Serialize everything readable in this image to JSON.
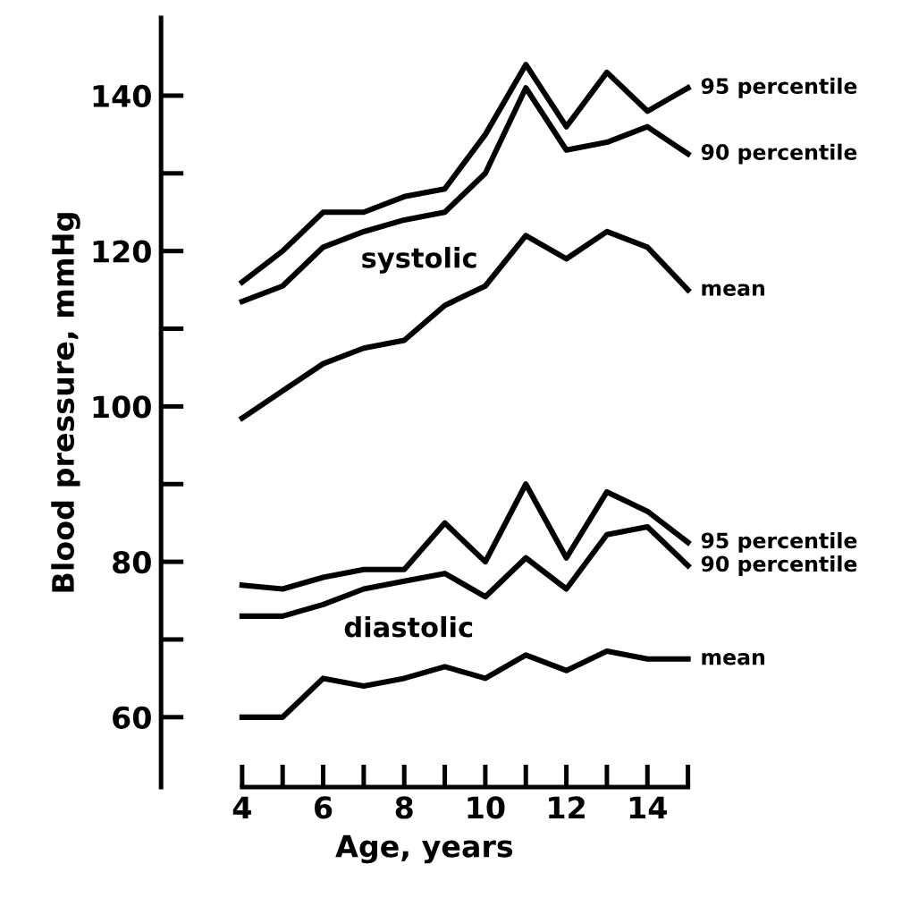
{
  "chart_data": {
    "type": "line",
    "xlabel": "Age, years",
    "ylabel": "Blood pressure, mmHg",
    "x": [
      4,
      5,
      6,
      7,
      8,
      9,
      10,
      11,
      12,
      13,
      14,
      15
    ],
    "series": [
      {
        "name": "95 percentile",
        "color": "#000000",
        "values": [
          116,
          120,
          125,
          125,
          127,
          128,
          135,
          144,
          136,
          143,
          138,
          141
        ]
      },
      {
        "name": "90 percentile",
        "color": "#000000",
        "values": [
          113.5,
          115.5,
          120.5,
          122.5,
          124,
          125,
          130,
          141,
          133,
          134,
          136,
          132.5
        ]
      },
      {
        "name": "mean",
        "color": "#000000",
        "values": [
          98.5,
          102,
          105.5,
          107.5,
          108.5,
          113,
          115.5,
          122,
          119,
          122.5,
          120.5,
          115
        ]
      },
      {
        "name": "95 percentile",
        "color": "#000000",
        "values": [
          77,
          76.5,
          78,
          79,
          79,
          85,
          80,
          90,
          80.5,
          89,
          86.5,
          82.5
        ]
      },
      {
        "name": "90 percentile",
        "color": "#000000",
        "values": [
          73,
          73,
          74.5,
          76.5,
          77.5,
          78.5,
          75.5,
          80.5,
          76.5,
          83.5,
          84.5,
          79.5
        ]
      },
      {
        "name": "mean",
        "color": "#000000",
        "values": [
          60,
          60,
          65,
          64,
          65,
          66.5,
          65,
          68,
          66,
          68.5,
          67.5,
          67.5
        ]
      }
    ],
    "annotations": [
      {
        "text": "systolic",
        "x": 10,
        "y": 115.5
      },
      "diastolic"
    ],
    "xlim": [
      2,
      15
    ],
    "ylim": [
      51,
      150
    ],
    "xticks": [
      4,
      {
        "value": 5,
        "label": null
      },
      6,
      {
        "value": 7,
        "label": null
      },
      8,
      {
        "value": 9,
        "label": null
      },
      10,
      {
        "value": 11,
        "label": null
      },
      12,
      {
        "value": 13,
        "label": null
      },
      14,
      {
        "value": 15,
        "label": null
      }
    ],
    "yticks": [
      60,
      {
        "value": 70,
        "label": null
      },
      80,
      {
        "value": 90,
        "label": null
      },
      100,
      {
        "value": 110,
        "label": null
      },
      120,
      {
        "value": 130,
        "label": null
      },
      140
    ],
    "grid": false,
    "legend": false,
    "marker": "none",
    "line_style": "solid"
  }
}
